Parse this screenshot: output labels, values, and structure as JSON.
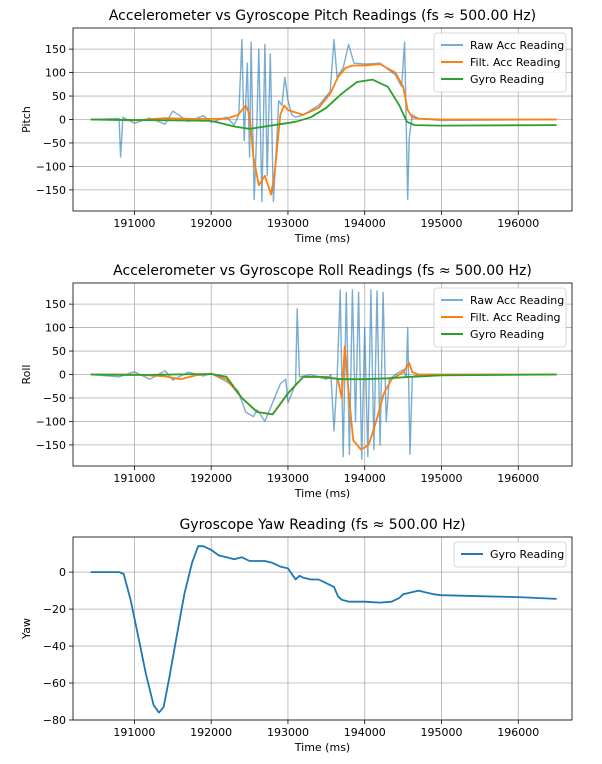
{
  "chart_data": [
    {
      "type": "line",
      "title": "Accelerometer vs Gyroscope Pitch Readings (fs ≈ 500.00 Hz)",
      "xlabel": "Time (ms)",
      "ylabel": "Pitch",
      "xlim": [
        190200,
        196700
      ],
      "ylim": [
        -195,
        195
      ],
      "xticks": [
        191000,
        192000,
        193000,
        194000,
        195000,
        196000
      ],
      "yticks": [
        -150,
        -100,
        -50,
        0,
        50,
        100,
        150
      ],
      "grid": true,
      "legend": "top-right",
      "series": [
        {
          "name": "Raw Acc Reading",
          "color": "#1f77b4",
          "points": [
            [
              190430,
              0
            ],
            [
              190800,
              2
            ],
            [
              190820,
              -80
            ],
            [
              190850,
              5
            ],
            [
              191000,
              -8
            ],
            [
              191200,
              3
            ],
            [
              191400,
              -10
            ],
            [
              191500,
              18
            ],
            [
              191700,
              -4
            ],
            [
              191900,
              8
            ],
            [
              192000,
              -6
            ],
            [
              192200,
              5
            ],
            [
              192300,
              -12
            ],
            [
              192360,
              10
            ],
            [
              192400,
              170
            ],
            [
              192430,
              -45
            ],
            [
              192470,
              120
            ],
            [
              192500,
              -80
            ],
            [
              192520,
              165
            ],
            [
              192560,
              -170
            ],
            [
              192590,
              -40
            ],
            [
              192620,
              150
            ],
            [
              192660,
              -175
            ],
            [
              192700,
              160
            ],
            [
              192730,
              -120
            ],
            [
              192770,
              140
            ],
            [
              192810,
              -175
            ],
            [
              192850,
              -60
            ],
            [
              192880,
              40
            ],
            [
              192920,
              30
            ],
            [
              192960,
              90
            ],
            [
              193000,
              40
            ],
            [
              193050,
              10
            ],
            [
              193100,
              5
            ],
            [
              193200,
              10
            ],
            [
              193300,
              20
            ],
            [
              193400,
              30
            ],
            [
              193550,
              60
            ],
            [
              193600,
              170
            ],
            [
              193640,
              90
            ],
            [
              193720,
              110
            ],
            [
              193790,
              160
            ],
            [
              193860,
              120
            ],
            [
              194000,
              118
            ],
            [
              194200,
              120
            ],
            [
              194400,
              95
            ],
            [
              194480,
              70
            ],
            [
              194520,
              165
            ],
            [
              194560,
              -170
            ],
            [
              194580,
              -40
            ],
            [
              194620,
              10
            ],
            [
              194700,
              2
            ],
            [
              195000,
              -2
            ],
            [
              196500,
              0
            ]
          ]
        },
        {
          "name": "Filt. Acc Reading",
          "color": "#ff7f0e",
          "points": [
            [
              190430,
              0
            ],
            [
              191000,
              -2
            ],
            [
              191400,
              3
            ],
            [
              191800,
              1
            ],
            [
              192200,
              2
            ],
            [
              192350,
              10
            ],
            [
              192450,
              30
            ],
            [
              192500,
              10
            ],
            [
              192550,
              -80
            ],
            [
              192620,
              -140
            ],
            [
              192700,
              -120
            ],
            [
              192780,
              -160
            ],
            [
              192830,
              -110
            ],
            [
              192900,
              10
            ],
            [
              192950,
              30
            ],
            [
              193000,
              20
            ],
            [
              193200,
              10
            ],
            [
              193400,
              25
            ],
            [
              193550,
              55
            ],
            [
              193650,
              90
            ],
            [
              193750,
              110
            ],
            [
              193850,
              115
            ],
            [
              194000,
              115
            ],
            [
              194200,
              118
            ],
            [
              194400,
              100
            ],
            [
              194500,
              70
            ],
            [
              194560,
              20
            ],
            [
              194620,
              5
            ],
            [
              194700,
              2
            ],
            [
              195000,
              0
            ],
            [
              196500,
              0
            ]
          ]
        },
        {
          "name": "Gyro Reading",
          "color": "#2ca02c",
          "points": [
            [
              190430,
              0
            ],
            [
              191000,
              -1
            ],
            [
              191500,
              -2
            ],
            [
              192000,
              -3
            ],
            [
              192300,
              -15
            ],
            [
              192500,
              -20
            ],
            [
              192700,
              -15
            ],
            [
              192900,
              -10
            ],
            [
              193100,
              -5
            ],
            [
              193300,
              5
            ],
            [
              193500,
              25
            ],
            [
              193700,
              55
            ],
            [
              193900,
              80
            ],
            [
              194100,
              85
            ],
            [
              194300,
              70
            ],
            [
              194450,
              30
            ],
            [
              194550,
              -5
            ],
            [
              194650,
              -12
            ],
            [
              195000,
              -13
            ],
            [
              196500,
              -12
            ]
          ]
        }
      ]
    },
    {
      "type": "line",
      "title": "Accelerometer vs Gyroscope Roll Readings (fs ≈ 500.00 Hz)",
      "xlabel": "Time (ms)",
      "ylabel": "Roll",
      "xlim": [
        190200,
        196700
      ],
      "ylim": [
        -195,
        195
      ],
      "xticks": [
        191000,
        192000,
        193000,
        194000,
        195000,
        196000
      ],
      "yticks": [
        -150,
        -100,
        -50,
        0,
        50,
        100,
        150
      ],
      "grid": true,
      "legend": "top-right",
      "series": [
        {
          "name": "Raw Acc Reading",
          "color": "#1f77b4",
          "points": [
            [
              190430,
              0
            ],
            [
              190800,
              -5
            ],
            [
              191000,
              6
            ],
            [
              191200,
              -10
            ],
            [
              191400,
              8
            ],
            [
              191500,
              -12
            ],
            [
              191700,
              5
            ],
            [
              191900,
              -3
            ],
            [
              192000,
              2
            ],
            [
              192200,
              -15
            ],
            [
              192350,
              -35
            ],
            [
              192450,
              -80
            ],
            [
              192550,
              -90
            ],
            [
              192600,
              -75
            ],
            [
              192700,
              -100
            ],
            [
              192800,
              -60
            ],
            [
              192900,
              -20
            ],
            [
              192970,
              -10
            ],
            [
              193000,
              -60
            ],
            [
              193100,
              -20
            ],
            [
              193120,
              140
            ],
            [
              193150,
              -5
            ],
            [
              193300,
              0
            ],
            [
              193500,
              -10
            ],
            [
              193560,
              0
            ],
            [
              193600,
              -120
            ],
            [
              193640,
              -10
            ],
            [
              193680,
              180
            ],
            [
              193720,
              -175
            ],
            [
              193760,
              175
            ],
            [
              193800,
              -170
            ],
            [
              193840,
              180
            ],
            [
              193880,
              -100
            ],
            [
              193920,
              175
            ],
            [
              193960,
              -180
            ],
            [
              194000,
              100
            ],
            [
              194040,
              -175
            ],
            [
              194080,
              180
            ],
            [
              194120,
              -160
            ],
            [
              194160,
              178
            ],
            [
              194200,
              -150
            ],
            [
              194240,
              175
            ],
            [
              194280,
              -100
            ],
            [
              194320,
              -10
            ],
            [
              194400,
              0
            ],
            [
              194500,
              10
            ],
            [
              194540,
              -5
            ],
            [
              194560,
              100
            ],
            [
              194590,
              -170
            ],
            [
              194620,
              -5
            ],
            [
              194700,
              0
            ],
            [
              195000,
              0
            ],
            [
              196500,
              0
            ]
          ]
        },
        {
          "name": "Filt. Acc Reading",
          "color": "#ff7f0e",
          "points": [
            [
              190430,
              0
            ],
            [
              191000,
              0
            ],
            [
              191400,
              -4
            ],
            [
              191600,
              -10
            ],
            [
              191800,
              -2
            ],
            [
              192000,
              2
            ],
            [
              192200,
              -10
            ],
            [
              192400,
              -50
            ],
            [
              192600,
              -80
            ],
            [
              192800,
              -85
            ],
            [
              193000,
              -40
            ],
            [
              193200,
              -5
            ],
            [
              193500,
              -5
            ],
            [
              193650,
              -10
            ],
            [
              193700,
              -50
            ],
            [
              193740,
              60
            ],
            [
              193780,
              -20
            ],
            [
              193850,
              -140
            ],
            [
              193950,
              -160
            ],
            [
              194050,
              -150
            ],
            [
              194150,
              -100
            ],
            [
              194250,
              -40
            ],
            [
              194350,
              -10
            ],
            [
              194500,
              5
            ],
            [
              194580,
              25
            ],
            [
              194620,
              5
            ],
            [
              194700,
              0
            ],
            [
              195000,
              0
            ],
            [
              196500,
              0
            ]
          ]
        },
        {
          "name": "Gyro Reading",
          "color": "#2ca02c",
          "points": [
            [
              190430,
              0
            ],
            [
              191000,
              -1
            ],
            [
              191500,
              0
            ],
            [
              192000,
              1
            ],
            [
              192200,
              -5
            ],
            [
              192400,
              -50
            ],
            [
              192600,
              -80
            ],
            [
              192800,
              -85
            ],
            [
              193000,
              -40
            ],
            [
              193200,
              -5
            ],
            [
              193400,
              -5
            ],
            [
              193700,
              -10
            ],
            [
              194000,
              -10
            ],
            [
              194300,
              -8
            ],
            [
              194600,
              -5
            ],
            [
              195000,
              -2
            ],
            [
              196500,
              0
            ]
          ]
        }
      ]
    },
    {
      "type": "line",
      "title": "Gyroscope Yaw Reading (fs ≈ 500.00 Hz)",
      "xlabel": "Time (ms)",
      "ylabel": "Yaw",
      "xlim": [
        190200,
        196700
      ],
      "ylim": [
        -80,
        19
      ],
      "xticks": [
        191000,
        192000,
        193000,
        194000,
        195000,
        196000
      ],
      "yticks": [
        -80,
        -60,
        -40,
        -20,
        0
      ],
      "grid": true,
      "legend": "top-right",
      "series": [
        {
          "name": "Gyro Reading",
          "color": "#1f77b4",
          "points": [
            [
              190430,
              0
            ],
            [
              190800,
              0
            ],
            [
              190860,
              -1
            ],
            [
              190950,
              -15
            ],
            [
              191050,
              -35
            ],
            [
              191150,
              -55
            ],
            [
              191250,
              -72
            ],
            [
              191320,
              -76
            ],
            [
              191380,
              -73
            ],
            [
              191450,
              -58
            ],
            [
              191550,
              -35
            ],
            [
              191650,
              -12
            ],
            [
              191750,
              5
            ],
            [
              191830,
              14
            ],
            [
              191900,
              14
            ],
            [
              192000,
              12
            ],
            [
              192100,
              9
            ],
            [
              192200,
              8
            ],
            [
              192300,
              7
            ],
            [
              192400,
              8
            ],
            [
              192500,
              6
            ],
            [
              192600,
              6
            ],
            [
              192700,
              6
            ],
            [
              192800,
              5
            ],
            [
              192900,
              3
            ],
            [
              193000,
              2
            ],
            [
              193050,
              -1
            ],
            [
              193100,
              -4
            ],
            [
              193150,
              -2
            ],
            [
              193200,
              -3
            ],
            [
              193300,
              -4
            ],
            [
              193400,
              -4
            ],
            [
              193500,
              -6
            ],
            [
              193600,
              -8
            ],
            [
              193650,
              -13
            ],
            [
              193700,
              -15
            ],
            [
              193800,
              -16
            ],
            [
              194000,
              -16
            ],
            [
              194200,
              -16.5
            ],
            [
              194350,
              -16
            ],
            [
              194450,
              -14
            ],
            [
              194500,
              -12
            ],
            [
              194600,
              -11
            ],
            [
              194700,
              -10
            ],
            [
              194800,
              -11
            ],
            [
              194900,
              -12
            ],
            [
              195000,
              -12.5
            ],
            [
              195500,
              -13
            ],
            [
              196000,
              -13.5
            ],
            [
              196500,
              -14.5
            ]
          ]
        }
      ]
    }
  ]
}
